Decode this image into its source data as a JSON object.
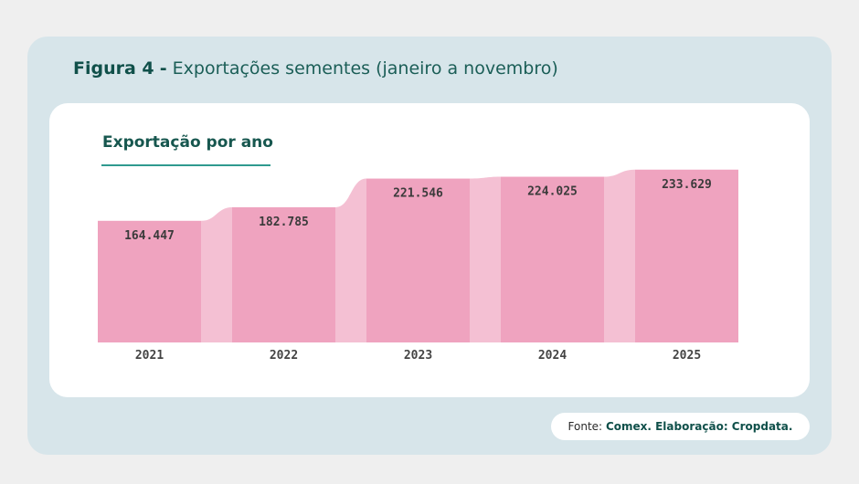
{
  "figure": {
    "label": "Figura 4",
    "separator": "-",
    "caption": "Exportações sementes (janeiro a novembro)"
  },
  "card": {
    "title": "Exportação por ano"
  },
  "source": {
    "prefix": "Fonte:",
    "text": "Comex. Elaboração: Cropdata."
  },
  "colors": {
    "panel": "#d7e5ea",
    "bar": "#efa3bf",
    "connector": "#f4c0d3",
    "title_green": "#10504a",
    "accent_rule": "#2f9a8f"
  },
  "chart_data": {
    "type": "bar",
    "title": "Exportação por ano",
    "categories": [
      "2021",
      "2022",
      "2023",
      "2024",
      "2025"
    ],
    "values": [
      164447,
      182785,
      221546,
      224025,
      233629
    ],
    "value_labels": [
      "164.447",
      "182.785",
      "221.546",
      "224.025",
      "233.629"
    ],
    "xlabel": "",
    "ylabel": "",
    "grid": false,
    "legend": "none"
  }
}
